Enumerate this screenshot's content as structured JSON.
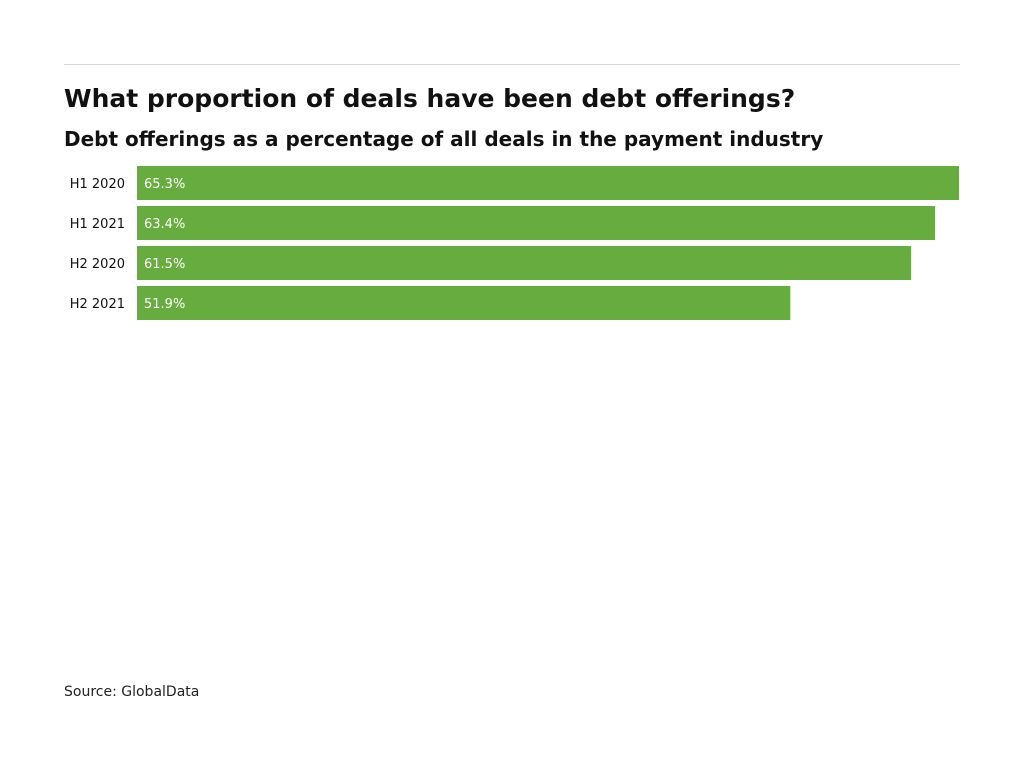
{
  "chart_data": {
    "type": "bar",
    "orientation": "horizontal",
    "title": "What proportion of deals have been debt offerings?",
    "subtitle": "Debt offerings as a percentage of all deals in the payment industry",
    "categories": [
      "H1 2020",
      "H1 2021",
      "H2 2020",
      "H2 2021"
    ],
    "values": [
      65.3,
      63.4,
      61.5,
      51.9
    ],
    "value_labels": [
      "65.3%",
      "63.4%",
      "61.5%",
      "51.9%"
    ],
    "unit": "%",
    "xlim": [
      0,
      65.3
    ],
    "grid": false,
    "legend": "none",
    "source": "Source: GlobalData",
    "colors": {
      "bar": "#67ac3e",
      "bar_label": "#ffffff",
      "category_label": "#111111",
      "rule": "#d6d6d6"
    }
  }
}
